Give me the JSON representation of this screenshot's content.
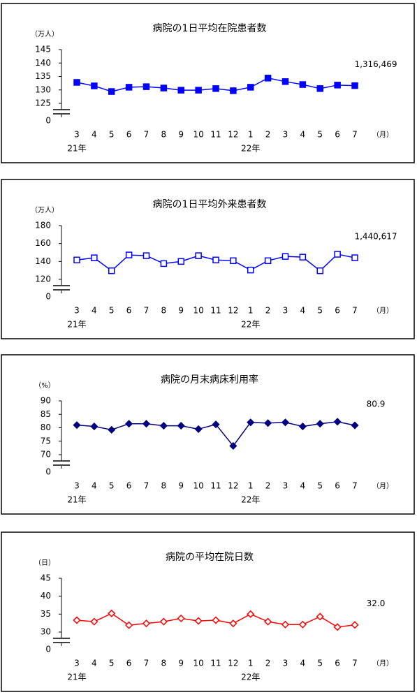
{
  "chart_data": [
    {
      "type": "line",
      "title": "病院の1日平均在院患者数",
      "unit_label": "（万人）",
      "x_unit_label": "（月）",
      "annotation": "1,316,469",
      "categories": [
        "3",
        "4",
        "5",
        "6",
        "7",
        "8",
        "9",
        "10",
        "11",
        "12",
        "1",
        "2",
        "3",
        "4",
        "5",
        "6",
        "7"
      ],
      "year_labels": [
        "21年",
        null,
        null,
        null,
        null,
        null,
        null,
        null,
        null,
        null,
        "22年",
        null,
        null,
        null,
        null,
        null,
        null
      ],
      "series": [
        {
          "name": "病院の1日平均在院患者数",
          "color": "#0000ff",
          "marker": "square",
          "filled": true,
          "values": [
            132.8,
            131.5,
            129.4,
            131.0,
            131.2,
            130.7,
            129.9,
            129.9,
            130.5,
            129.7,
            131.0,
            134.4,
            133.1,
            132.0,
            130.5,
            131.8,
            131.6
          ]
        }
      ],
      "ylim": [
        125,
        145
      ],
      "yticks": [
        125,
        130,
        135,
        140,
        145
      ],
      "zero_tick": 0,
      "axis_break": true
    },
    {
      "type": "line",
      "title": "病院の1日平均外来患者数",
      "unit_label": "（万人）",
      "x_unit_label": "（月）",
      "annotation": "1,440,617",
      "categories": [
        "3",
        "4",
        "5",
        "6",
        "7",
        "8",
        "9",
        "10",
        "11",
        "12",
        "1",
        "2",
        "3",
        "4",
        "5",
        "6",
        "7"
      ],
      "year_labels": [
        "21年",
        null,
        null,
        null,
        null,
        null,
        null,
        null,
        null,
        null,
        "22年",
        null,
        null,
        null,
        null,
        null,
        null
      ],
      "series": [
        {
          "name": "病院の1日平均外来患者数",
          "color": "#0000ff",
          "marker": "square",
          "filled": false,
          "values": [
            141.6,
            144,
            129.6,
            147.2,
            146.4,
            137.6,
            140,
            146.4,
            141.6,
            140.8,
            130.4,
            140.8,
            145.6,
            144.8,
            129.6,
            148,
            144.1
          ]
        }
      ],
      "ylim": [
        120,
        180
      ],
      "yticks": [
        120,
        140,
        160,
        180
      ],
      "zero_tick": 0,
      "axis_break": true
    },
    {
      "type": "line",
      "title": "病院の月末病床利用率",
      "unit_label": "（%）",
      "x_unit_label": "（月）",
      "annotation": "80.9",
      "categories": [
        "3",
        "4",
        "5",
        "6",
        "7",
        "8",
        "9",
        "10",
        "11",
        "12",
        "1",
        "2",
        "3",
        "4",
        "5",
        "6",
        "7"
      ],
      "year_labels": [
        "21年",
        null,
        null,
        null,
        null,
        null,
        null,
        null,
        null,
        null,
        "22年",
        null,
        null,
        null,
        null,
        null,
        null
      ],
      "series": [
        {
          "name": "病院の月末病床利用率",
          "color": "#000080",
          "marker": "diamond",
          "filled": true,
          "values": [
            81,
            80.5,
            79.25,
            81.5,
            81.5,
            80.75,
            80.75,
            79.5,
            81.25,
            73.25,
            82,
            81.75,
            82,
            80.5,
            81.5,
            82.25,
            80.9
          ]
        }
      ],
      "ylim": [
        70,
        90
      ],
      "yticks": [
        70,
        75,
        80,
        85,
        90
      ],
      "zero_tick": 0,
      "axis_break": true
    },
    {
      "type": "line",
      "title": "病院の平均在院日数",
      "unit_label": "（日）",
      "x_unit_label": "（月）",
      "annotation": "32.0",
      "categories": [
        "3",
        "4",
        "5",
        "6",
        "7",
        "8",
        "9",
        "10",
        "11",
        "12",
        "1",
        "2",
        "3",
        "4",
        "5",
        "6",
        "7"
      ],
      "year_labels": [
        "21年",
        null,
        null,
        null,
        null,
        null,
        null,
        null,
        null,
        null,
        "22年",
        null,
        null,
        null,
        null,
        null,
        null
      ],
      "series": [
        {
          "name": "病院の平均在院日数",
          "color": "#ff0000",
          "marker": "diamond",
          "filled": false,
          "values": [
            33.3,
            32.9,
            35.2,
            31.9,
            32.4,
            32.9,
            33.8,
            33.1,
            33.3,
            32.4,
            35,
            32.9,
            32.1,
            32.1,
            34.3,
            31.4,
            32.0
          ]
        }
      ],
      "ylim": [
        30,
        45
      ],
      "yticks": [
        30,
        35,
        40,
        45
      ],
      "zero_tick": 0,
      "axis_break": true
    }
  ]
}
